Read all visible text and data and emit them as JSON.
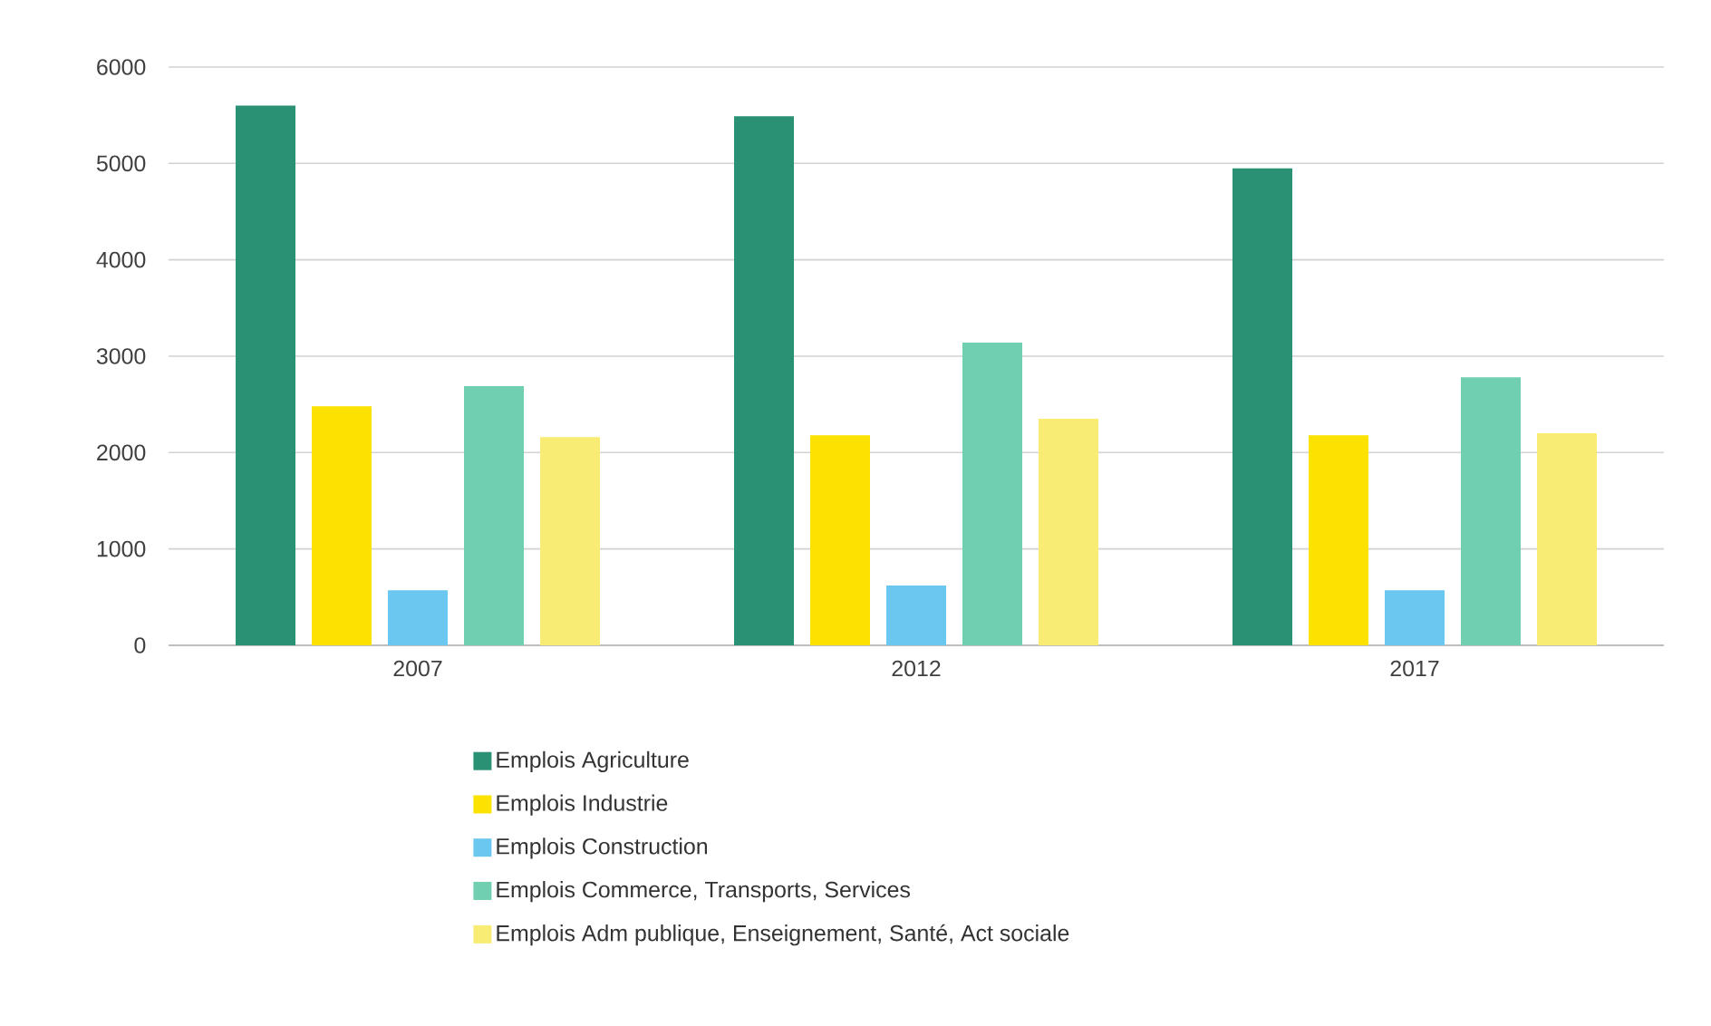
{
  "chart_data": {
    "type": "bar",
    "categories": [
      "2007",
      "2012",
      "2017"
    ],
    "series": [
      {
        "name": "Emplois Agriculture",
        "color": "#2a9175",
        "values": [
          5600,
          5490,
          4950
        ]
      },
      {
        "name": "Emplois Industrie",
        "color": "#fbe200",
        "values": [
          2480,
          2180,
          2180
        ]
      },
      {
        "name": "Emplois Construction",
        "color": "#6ac8f0",
        "values": [
          570,
          620,
          570
        ]
      },
      {
        "name": "Emplois Commerce, Transports, Services",
        "color": "#6fcfb0",
        "values": [
          2690,
          3140,
          2780
        ]
      },
      {
        "name": "Emplois Adm publique, Enseignement, Santé, Act sociale",
        "color": "#f8ec74",
        "values": [
          2160,
          2350,
          2200
        ]
      }
    ],
    "ylim": [
      0,
      6000
    ],
    "yticks": [
      0,
      1000,
      2000,
      3000,
      4000,
      5000,
      6000
    ],
    "grid": "y",
    "legend": "bottom"
  }
}
